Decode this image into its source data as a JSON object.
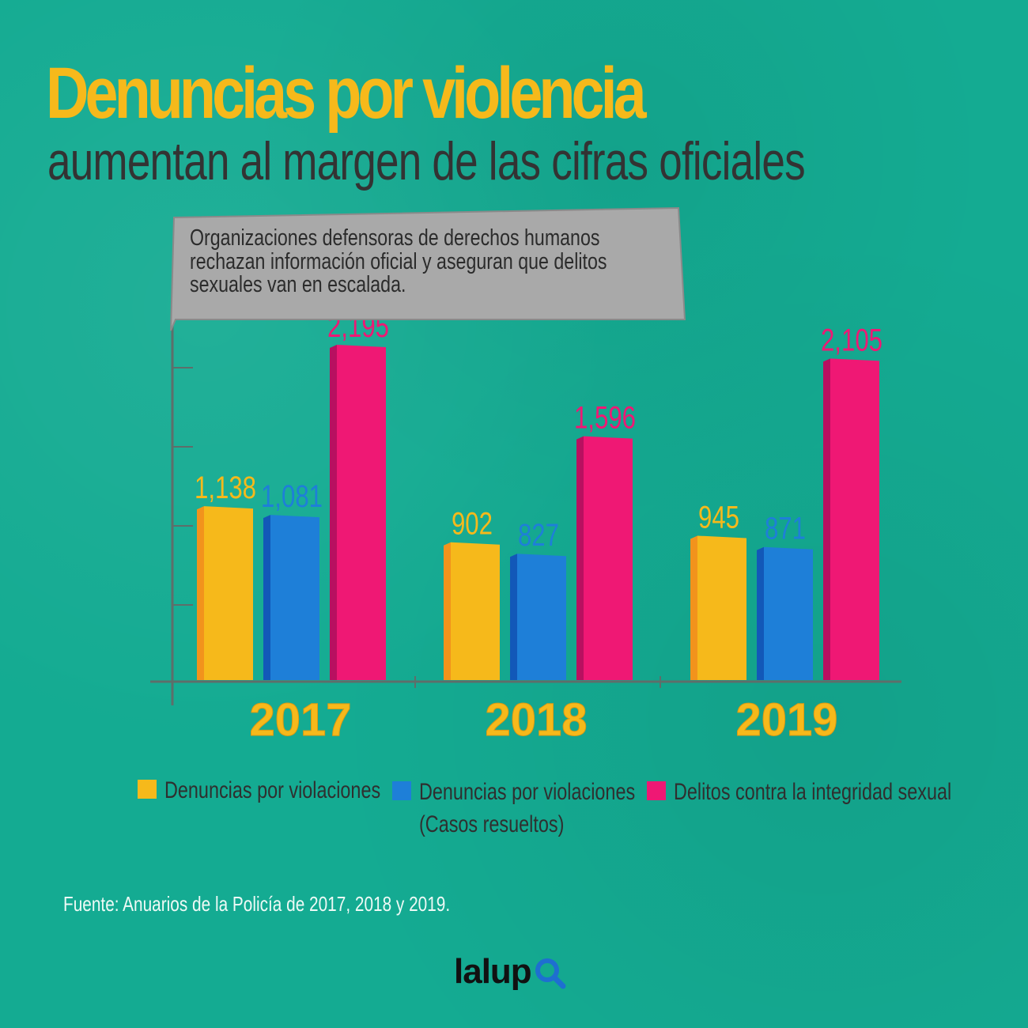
{
  "header": {
    "title": "Denuncias por violencia",
    "subtitle": "aumentan al margen de las cifras oficiales"
  },
  "callout": {
    "lines": [
      "Organizaciones defensoras de derechos humanos",
      "rechazan información oficial y aseguran que delitos",
      "sexuales van en escalada."
    ]
  },
  "chart_data": {
    "type": "bar",
    "categories": [
      "2017",
      "2018",
      "2019"
    ],
    "value_labels": [
      [
        "1,138",
        "1,081",
        "2,195"
      ],
      [
        "902",
        "827",
        "1,596"
      ],
      [
        "945",
        "871",
        "2,105"
      ]
    ],
    "series": [
      {
        "name": "Denuncias por violaciones",
        "values": [
          1138,
          902,
          945
        ],
        "color": "#f6b91b",
        "shade": "#f2931c"
      },
      {
        "name": "Denuncias por violaciones (Casos resueltos)",
        "values": [
          1081,
          827,
          871
        ],
        "color": "#1e7fd8",
        "shade": "#1258b8"
      },
      {
        "name": "Delitos contra la integridad sexual",
        "values": [
          2195,
          1596,
          2105
        ],
        "color": "#ef1874",
        "shade": "#b81060"
      }
    ],
    "ylim": [
      0,
      2200
    ],
    "grid": false,
    "legend_position": "bottom"
  },
  "legend": {
    "items": [
      {
        "line1": "Denuncias por violaciones",
        "line2": ""
      },
      {
        "line1": "Denuncias por violaciones",
        "line2": "(Casos resueltos)"
      },
      {
        "line1": "Delitos contra la integridad sexual",
        "line2": ""
      }
    ]
  },
  "source": "Fuente: Anuarios de la Policía de 2017, 2018 y 2019.",
  "logo": {
    "text": "lalup",
    "icon": "magnifier-icon"
  },
  "colors": {
    "background": "#14ab92",
    "title": "#f6b91b",
    "subtitle": "#333333",
    "callout": "#a9a9a9"
  }
}
